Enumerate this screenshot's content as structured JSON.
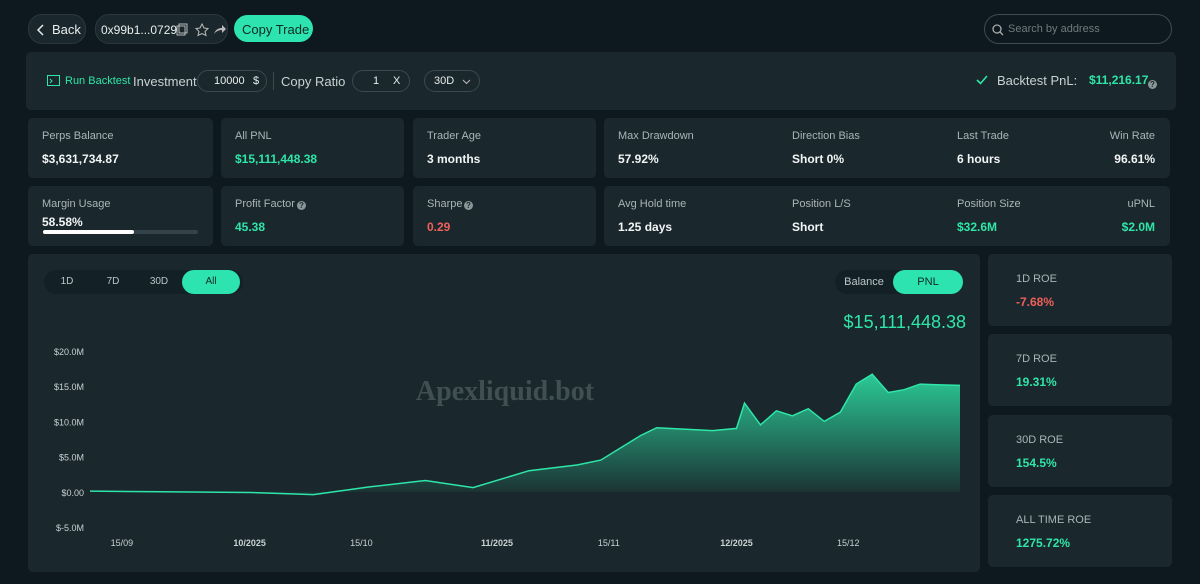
{
  "header": {
    "back": "Back",
    "address": "0x99b1...0729",
    "copy_trade": "Copy Trade",
    "search_placeholder": "Search by address"
  },
  "backtest": {
    "run": "Run Backtest",
    "investment_label": "Investment",
    "investment": "10000",
    "currency": "$",
    "ratio_label": "Copy Ratio",
    "ratio": "1",
    "ratio_unit": "X",
    "period": "30D",
    "pnl_label": "Backtest PnL:",
    "pnl": "$11,216.17"
  },
  "cards": [
    {
      "label": "Perps Balance",
      "value": "$3,631,734.87",
      "tone": "plain"
    },
    {
      "label": "All PNL",
      "value": "$15,111,448.38",
      "tone": "up"
    },
    {
      "label": "Trader Age",
      "value": "3 months",
      "tone": "plain"
    },
    {
      "label": "Margin Usage",
      "value": "58.58%",
      "tone": "plain",
      "progress": 58.58
    },
    {
      "label": "Profit Factor",
      "value": "45.38",
      "tone": "up",
      "help": true
    },
    {
      "label": "Sharpe",
      "value": "0.29",
      "tone": "down",
      "help": true
    }
  ],
  "wide": [
    [
      {
        "label": "Max Drawdown",
        "value": "57.92%",
        "tone": "plain"
      },
      {
        "label": "Direction Bias",
        "value": "Short 0%",
        "tone": "plain"
      },
      {
        "label": "Last Trade",
        "value": "6 hours",
        "tone": "plain"
      },
      {
        "label": "Win Rate",
        "value": "96.61%",
        "tone": "plain"
      }
    ],
    [
      {
        "label": "Avg Hold time",
        "value": "1.25 days",
        "tone": "plain"
      },
      {
        "label": "Position L/S",
        "value": "Short",
        "tone": "plain"
      },
      {
        "label": "Position Size",
        "value": "$32.6M",
        "tone": "up"
      },
      {
        "label": "uPNL",
        "value": "$2.0M",
        "tone": "up"
      }
    ]
  ],
  "chart": {
    "ranges": [
      "1D",
      "7D",
      "30D",
      "All"
    ],
    "active_range": 3,
    "modes": [
      "Balance",
      "PNL"
    ],
    "active_mode": 1,
    "current": "$15,111,448.38",
    "watermark": "Apexliquid.bot"
  },
  "chart_data": {
    "type": "area",
    "color": "#2ee6a8",
    "x": [
      "2025-09-11",
      "2025-09-20",
      "2025-10-01",
      "2025-10-09",
      "2025-10-16",
      "2025-10-23",
      "2025-10-29",
      "2025-11-05",
      "2025-11-11",
      "2025-11-14",
      "2025-11-19",
      "2025-11-21",
      "2025-11-28",
      "2025-12-01",
      "2025-12-02",
      "2025-12-04",
      "2025-12-06",
      "2025-12-08",
      "2025-12-10",
      "2025-12-12",
      "2025-12-14",
      "2025-12-16",
      "2025-12-18",
      "2025-12-20",
      "2025-12-22",
      "2025-12-24",
      "2025-12-26",
      "2025-12-29"
    ],
    "values": [
      100000,
      0,
      -100000,
      -400000,
      700000,
      1600000,
      600000,
      3000000,
      3800000,
      4500000,
      8000000,
      9100000,
      8700000,
      9000000,
      12600000,
      9500000,
      11500000,
      10800000,
      11800000,
      10000000,
      11300000,
      15300000,
      16700000,
      14100000,
      14500000,
      15300000,
      15200000,
      15111448.38
    ],
    "xlim": [
      "2025-09-11",
      "2025-12-29"
    ],
    "xticks": [
      {
        "value": "2025-09-15",
        "label": "15/09"
      },
      {
        "value": "2025-10-01",
        "label": "10/2025"
      },
      {
        "value": "2025-10-15",
        "label": "15/10"
      },
      {
        "value": "2025-11-01",
        "label": "11/2025"
      },
      {
        "value": "2025-11-15",
        "label": "15/11"
      },
      {
        "value": "2025-12-01",
        "label": "12/2025"
      },
      {
        "value": "2025-12-15",
        "label": "15/12"
      }
    ],
    "ylim": [
      -5000000,
      20000000
    ],
    "yticks": [
      {
        "value": -5000000,
        "label": "$-5.0M"
      },
      {
        "value": 0,
        "label": "$0.00"
      },
      {
        "value": 5000000,
        "label": "$5.0M"
      },
      {
        "value": 10000000,
        "label": "$10.0M"
      },
      {
        "value": 15000000,
        "label": "$15.0M"
      },
      {
        "value": 20000000,
        "label": "$20.0M"
      }
    ]
  },
  "roe": [
    {
      "label": "1D ROE",
      "value": "-7.68%",
      "tone": "down"
    },
    {
      "label": "7D ROE",
      "value": "19.31%",
      "tone": "up"
    },
    {
      "label": "30D ROE",
      "value": "154.5%",
      "tone": "up"
    },
    {
      "label": "ALL TIME ROE",
      "value": "1275.72%",
      "tone": "up"
    }
  ]
}
